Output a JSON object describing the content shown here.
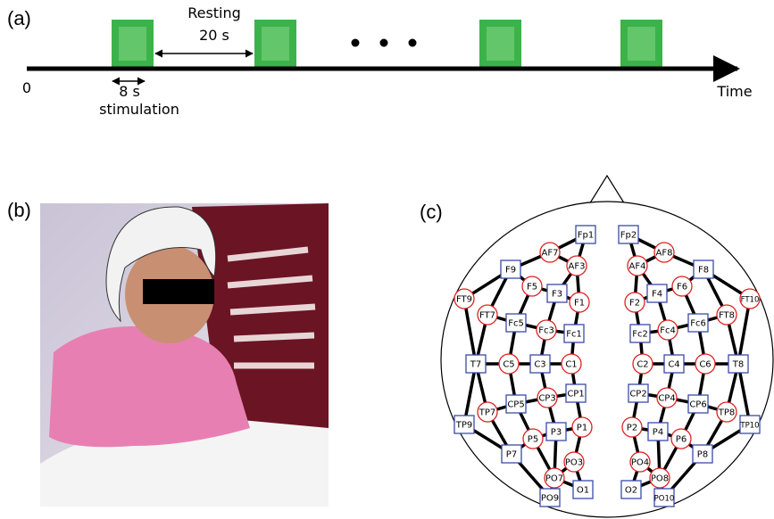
{
  "panel_a": {
    "label": "(a)",
    "resting": "Resting",
    "resting_duration": "20 s",
    "origin": "0",
    "stimulation_duration": "8 s",
    "stimulation": "stimulation",
    "axis": "Time"
  },
  "panel_b": {
    "label": "(b)"
  },
  "panel_c": {
    "label": "(c)",
    "nodes": [
      "Fp1",
      "AF7",
      "AF3",
      "F9",
      "F5",
      "F3",
      "F1",
      "FT9",
      "FT7",
      "Fc5",
      "Fc3",
      "Fc1",
      "T7",
      "C5",
      "C3",
      "C1",
      "CP1",
      "CP3",
      "CP5",
      "TP7",
      "TP9",
      "P1",
      "P3",
      "P5",
      "P7",
      "PO3",
      "PO7",
      "O1",
      "PO9",
      "Fp2",
      "AF8",
      "AF4",
      "F8",
      "F6",
      "F4",
      "F2",
      "FT10",
      "FT8",
      "Fc6",
      "Fc4",
      "Fc2",
      "T8",
      "C6",
      "C4",
      "C2",
      "CP2",
      "CP4",
      "CP6",
      "TP8",
      "TP10",
      "P2",
      "P4",
      "P6",
      "P8",
      "PO4",
      "PO8",
      "O2",
      "PO10"
    ]
  }
}
